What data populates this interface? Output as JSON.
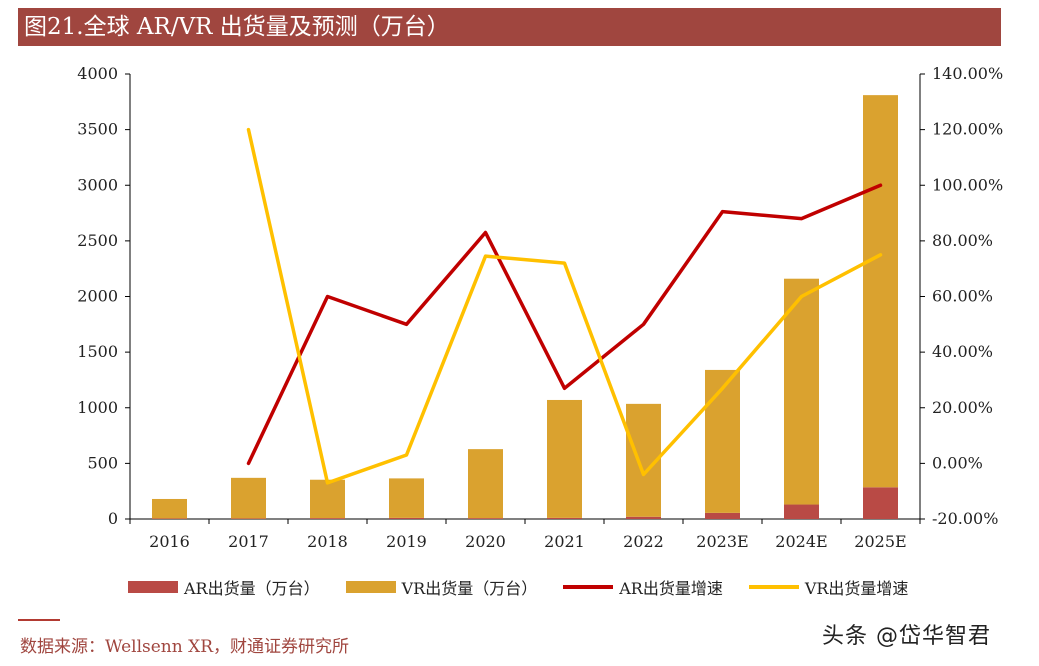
{
  "header": {
    "title": "图21.全球 AR/VR 出货量及预测（万台）"
  },
  "footer": {
    "source": "数据来源：Wellsenn XR，财通证券研究所",
    "watermark": "头条 @岱华智君"
  },
  "colors": {
    "title_bg": "#a0463f",
    "ar_bar": "#b94a45",
    "vr_bar": "#daa22f",
    "ar_line": "#c00000",
    "vr_line": "#ffc000"
  },
  "legend": {
    "ar_bar": "AR出货量（万台）",
    "vr_bar": "VR出货量（万台）",
    "ar_line": "AR出货量增速",
    "vr_line": "VR出货量增速"
  },
  "chart_data": {
    "type": "bar",
    "stacked": true,
    "categories": [
      "2016",
      "2017",
      "2018",
      "2019",
      "2020",
      "2021",
      "2022",
      "2023E",
      "2024E",
      "2025E"
    ],
    "series": [
      {
        "name": "AR出货量（万台）",
        "type": "bar",
        "axis": "left",
        "values": [
          5,
          5,
          8,
          10,
          8,
          10,
          20,
          55,
          130,
          285
        ]
      },
      {
        "name": "VR出货量（万台）",
        "type": "bar",
        "axis": "left",
        "values": [
          175,
          365,
          345,
          355,
          620,
          1060,
          1015,
          1285,
          2030,
          3525
        ]
      },
      {
        "name": "AR出货量增速",
        "type": "line",
        "axis": "right",
        "values": [
          null,
          0.0,
          60.0,
          50.0,
          83.0,
          27.0,
          50.0,
          90.5,
          88.0,
          100.0
        ]
      },
      {
        "name": "VR出货量增速",
        "type": "line",
        "axis": "right",
        "values": [
          null,
          120.0,
          -7.0,
          3.0,
          74.5,
          72.0,
          -4.0,
          27.0,
          60.0,
          75.0
        ]
      }
    ],
    "y_left": {
      "min": 0,
      "max": 4000,
      "ticks": [
        "0",
        "500",
        "1000",
        "1500",
        "2000",
        "2500",
        "3000",
        "3500",
        "4000"
      ]
    },
    "y_right": {
      "min": -20,
      "max": 140,
      "ticks": [
        "-20.00%",
        "0.00%",
        "20.00%",
        "40.00%",
        "60.00%",
        "80.00%",
        "100.00%",
        "120.00%",
        "140.00%"
      ]
    },
    "grid": false,
    "legend_position": "bottom"
  }
}
